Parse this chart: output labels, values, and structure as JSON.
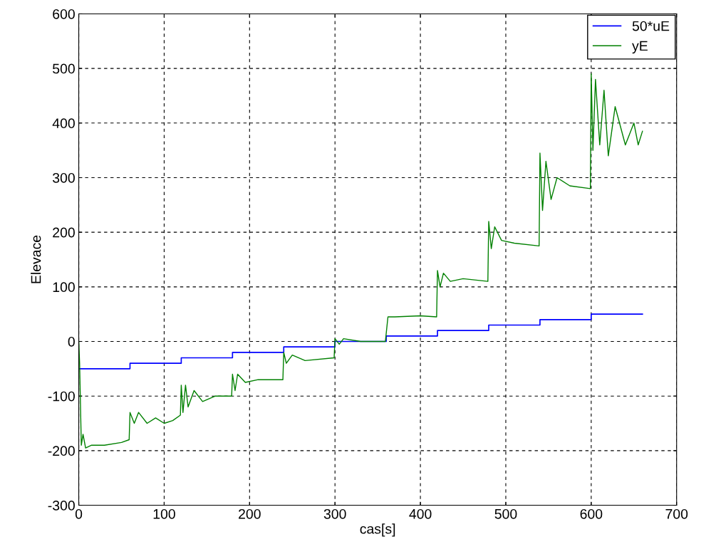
{
  "chart_data": {
    "type": "line",
    "xlabel": "cas[s]",
    "ylabel": "Elevace",
    "xlim": [
      0,
      700
    ],
    "ylim": [
      -300,
      600
    ],
    "xticks": [
      0,
      100,
      200,
      300,
      400,
      500,
      600,
      700
    ],
    "yticks": [
      -300,
      -200,
      -100,
      0,
      100,
      200,
      300,
      400,
      500,
      600
    ],
    "grid": true,
    "legend": "top right",
    "line_style": "solid",
    "marker": "none",
    "series": [
      {
        "name": "50*uE",
        "type": "step",
        "color": "#0000ff",
        "x": [
          0,
          60,
          120,
          180,
          240,
          300,
          360,
          420,
          480,
          540,
          600,
          660
        ],
        "values": [
          -50,
          -40,
          -30,
          -20,
          -10,
          0,
          10,
          20,
          30,
          40,
          50,
          50
        ]
      },
      {
        "name": "yE",
        "color": "#008000",
        "x": [
          0,
          1,
          3,
          5,
          8,
          15,
          30,
          50,
          59,
          60,
          65,
          70,
          80,
          90,
          100,
          110,
          119,
          120,
          122,
          125,
          128,
          135,
          145,
          160,
          179,
          180,
          183,
          186,
          195,
          210,
          239,
          240,
          243,
          250,
          265,
          299,
          300,
          305,
          310,
          330,
          359,
          362,
          370,
          400,
          419,
          420,
          423,
          427,
          435,
          450,
          479,
          480,
          483,
          487,
          495,
          510,
          539,
          540,
          543,
          547,
          553,
          560,
          575,
          599,
          600,
          602,
          605,
          610,
          615,
          620,
          628,
          640,
          650,
          655,
          660
        ],
        "values": [
          0,
          -40,
          -190,
          -170,
          -195,
          -190,
          -190,
          -185,
          -180,
          -130,
          -150,
          -130,
          -150,
          -140,
          -150,
          -145,
          -135,
          -80,
          -130,
          -80,
          -120,
          -90,
          -110,
          -100,
          -100,
          -60,
          -90,
          -60,
          -75,
          -70,
          -70,
          -20,
          -40,
          -25,
          -35,
          -30,
          5,
          -5,
          5,
          0,
          0,
          45,
          45,
          47,
          45,
          130,
          100,
          125,
          110,
          115,
          110,
          220,
          170,
          210,
          185,
          180,
          175,
          345,
          240,
          330,
          260,
          300,
          285,
          280,
          490,
          350,
          480,
          360,
          460,
          340,
          430,
          360,
          400,
          360,
          385
        ]
      }
    ]
  }
}
